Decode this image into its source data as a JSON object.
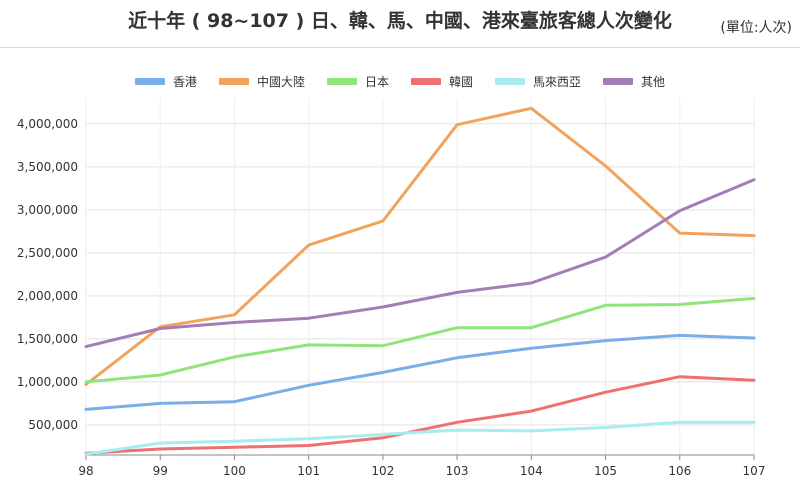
{
  "header": {
    "title": "近十年 ( 98~107 ) 日、韓、馬、中國、港來臺旅客總人次變化",
    "unit": "(單位:人次)"
  },
  "chart_data": {
    "type": "line",
    "title": "近十年 ( 98~107 ) 日、韓、馬、中國、港來臺旅客總人次變化",
    "xlabel": "",
    "ylabel": "",
    "x": [
      "98",
      "99",
      "100",
      "101",
      "102",
      "103",
      "104",
      "105",
      "106",
      "107"
    ],
    "ylim": [
      150000,
      4300000
    ],
    "yticks": [
      500000,
      1000000,
      1500000,
      2000000,
      2500000,
      3000000,
      3500000,
      4000000
    ],
    "ytick_labels": [
      "500,000",
      "1,000,000",
      "1,500,000",
      "2,000,000",
      "2,500,000",
      "3,000,000",
      "3,500,000",
      "4,000,000"
    ],
    "grid": "horizontal",
    "legend_position": "top-center",
    "series": [
      {
        "name": "香港",
        "color": "#7aaee8",
        "values": [
          680000,
          750000,
          770000,
          960000,
          1110000,
          1280000,
          1390000,
          1480000,
          1540000,
          1510000
        ]
      },
      {
        "name": "中國大陸",
        "color": "#f2a35b",
        "values": [
          970000,
          1640000,
          1780000,
          2590000,
          2870000,
          3990000,
          4180000,
          3510000,
          2730000,
          2700000
        ]
      },
      {
        "name": "日本",
        "color": "#90e47a",
        "values": [
          1000000,
          1080000,
          1290000,
          1430000,
          1420000,
          1630000,
          1630000,
          1890000,
          1900000,
          1970000
        ]
      },
      {
        "name": "韓國",
        "color": "#ee7070",
        "values": [
          170000,
          220000,
          240000,
          260000,
          350000,
          530000,
          660000,
          880000,
          1060000,
          1020000
        ]
      },
      {
        "name": "馬來西亞",
        "color": "#a8eced",
        "values": [
          160000,
          290000,
          310000,
          340000,
          390000,
          440000,
          430000,
          470000,
          530000,
          530000
        ]
      },
      {
        "name": "其他",
        "color": "#a47db6",
        "values": [
          1410000,
          1620000,
          1690000,
          1740000,
          1870000,
          2040000,
          2150000,
          2450000,
          2990000,
          3350000
        ]
      }
    ]
  }
}
